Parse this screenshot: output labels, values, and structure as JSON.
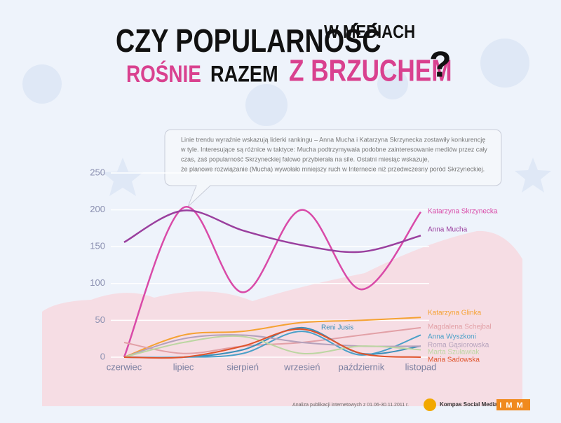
{
  "header": {
    "line1_big": "CZY POPULARNOŚĆ",
    "line1_small": "W MEDIACH",
    "line2_a": "ROŚNIE",
    "line2_b": "RAZEM",
    "line2_c": "Z BRZUCHEM",
    "line2_d": "?"
  },
  "note": {
    "lines": [
      "Linie trendu wyraźnie wskazują liderki rankingu – Anna Mucha i Katarzyna Skrzynecka zostawiły konkurencję",
      "w tyle. Interesujące są różnice w taktyce: Mucha podtrzymywała podobne zainteresowanie mediów przez cały",
      "czas, zaś popularność Skrzyneckiej falowo przybierała na sile. Ostatni miesiąc wskazuje,",
      "że planowe rozwiązanie (Mucha) wywołało mniejszy ruch w Internecie niż przedwczesny poród Skrzyneckiej."
    ]
  },
  "footer": {
    "source": "Analiza publikacji internetowych z 01.06-30.11.2011 r.",
    "brand": "Kompas Social Media",
    "logo": "IMM"
  },
  "chart_data": {
    "type": "line",
    "categories": [
      "czerwiec",
      "lipiec",
      "sierpień",
      "wrzesień",
      "październik",
      "listopad"
    ],
    "ylim": [
      0,
      250
    ],
    "yticks": [
      0,
      50,
      100,
      150,
      200,
      250
    ],
    "grid": true,
    "series": [
      {
        "name": "Katarzyna Skrzynecka",
        "color": "#d94aa8",
        "values": [
          0,
          203,
          88,
          200,
          92,
          197
        ]
      },
      {
        "name": "Anna Mucha",
        "color": "#9a3f9e",
        "values": [
          156,
          199,
          172,
          152,
          143,
          165
        ]
      },
      {
        "name": "Katarzyna Glinka",
        "color": "#f5a232",
        "values": [
          0,
          30,
          35,
          47,
          50,
          54
        ]
      },
      {
        "name": "Magdalena Schejbal",
        "color": "#e2a0a6",
        "values": [
          20,
          5,
          15,
          20,
          30,
          40
        ]
      },
      {
        "name": "Reni Jusis",
        "color": "#3a8fb8",
        "values": [
          0,
          0,
          10,
          40,
          5,
          15
        ]
      },
      {
        "name": "Anna Wyszkoni",
        "color": "#4aa0c8",
        "values": [
          0,
          0,
          5,
          35,
          3,
          30
        ]
      },
      {
        "name": "Roma Gąsiorowska",
        "color": "#b4a2bc",
        "values": [
          0,
          25,
          30,
          20,
          15,
          15
        ]
      },
      {
        "name": "Marta Szuławiak",
        "color": "#bcd6a2",
        "values": [
          0,
          20,
          28,
          5,
          15,
          10
        ]
      },
      {
        "name": "Maria Sadowska",
        "color": "#e0532a",
        "values": [
          0,
          0,
          15,
          38,
          5,
          0
        ]
      }
    ]
  }
}
